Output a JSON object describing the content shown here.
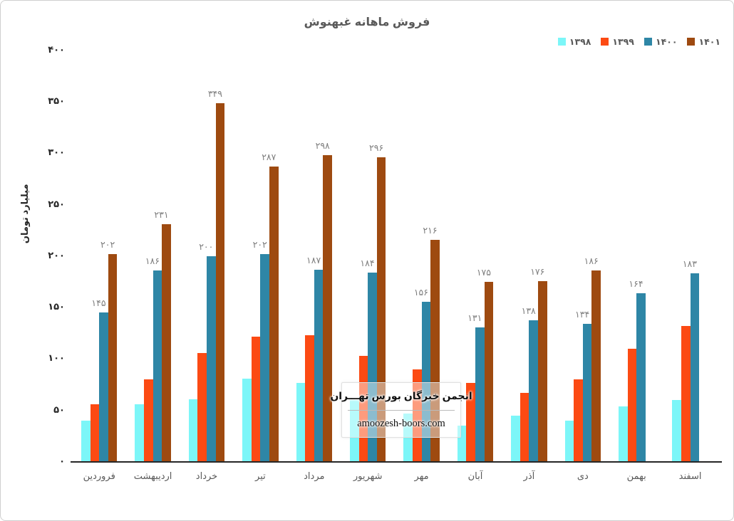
{
  "title": "فروش ماهانه غبهنوش",
  "y_axis": {
    "label": "میلیارد تومان",
    "ticks": [
      0,
      50,
      100,
      150,
      200,
      250,
      300,
      350,
      400
    ]
  },
  "legend": [
    {
      "label": "۱۳۹۸",
      "color": "#7CF6F8"
    },
    {
      "label": "۱۳۹۹",
      "color": "#FC4A13"
    },
    {
      "label": "۱۴۰۰",
      "color": "#2E86A6"
    },
    {
      "label": "۱۴۰۱",
      "color": "#9E4A10"
    }
  ],
  "watermark": {
    "line1": "انجمن خبرگان بورس تهـــران",
    "line2": "amoozesh-boors.com"
  },
  "chart_data": {
    "type": "bar",
    "title": "فروش ماهانه غبهنوش",
    "xlabel": "",
    "ylabel": "میلیارد تومان",
    "ylim": [
      0,
      400
    ],
    "grid": false,
    "legend_position": "top-right",
    "categories": [
      "فروردین",
      "اردیبهشت",
      "خرداد",
      "تیر",
      "مرداد",
      "شهریور",
      "مهر",
      "آبان",
      "آذر",
      "دی",
      "بهمن",
      "اسفند"
    ],
    "series": [
      {
        "name": "۱۳۹۸",
        "year": "1398",
        "color": "#7CF6F8",
        "labeled": false,
        "values": [
          40,
          56,
          61,
          81,
          77,
          60,
          47,
          35,
          45,
          40,
          54,
          60
        ]
      },
      {
        "name": "۱۳۹۹",
        "year": "1399",
        "color": "#FC4A13",
        "labeled": false,
        "values": [
          56,
          80,
          106,
          122,
          123,
          103,
          90,
          77,
          67,
          80,
          110,
          132
        ]
      },
      {
        "name": "۱۴۰۰",
        "year": "1400",
        "color": "#2E86A6",
        "labeled": true,
        "values": [
          145,
          186,
          200,
          202,
          187,
          184,
          156,
          131,
          138,
          134,
          164,
          183
        ]
      },
      {
        "name": "۱۴۰۱",
        "year": "1401",
        "color": "#9E4A10",
        "labeled": true,
        "values": [
          202,
          231,
          349,
          287,
          298,
          296,
          216,
          175,
          176,
          186,
          null,
          null
        ]
      }
    ]
  }
}
